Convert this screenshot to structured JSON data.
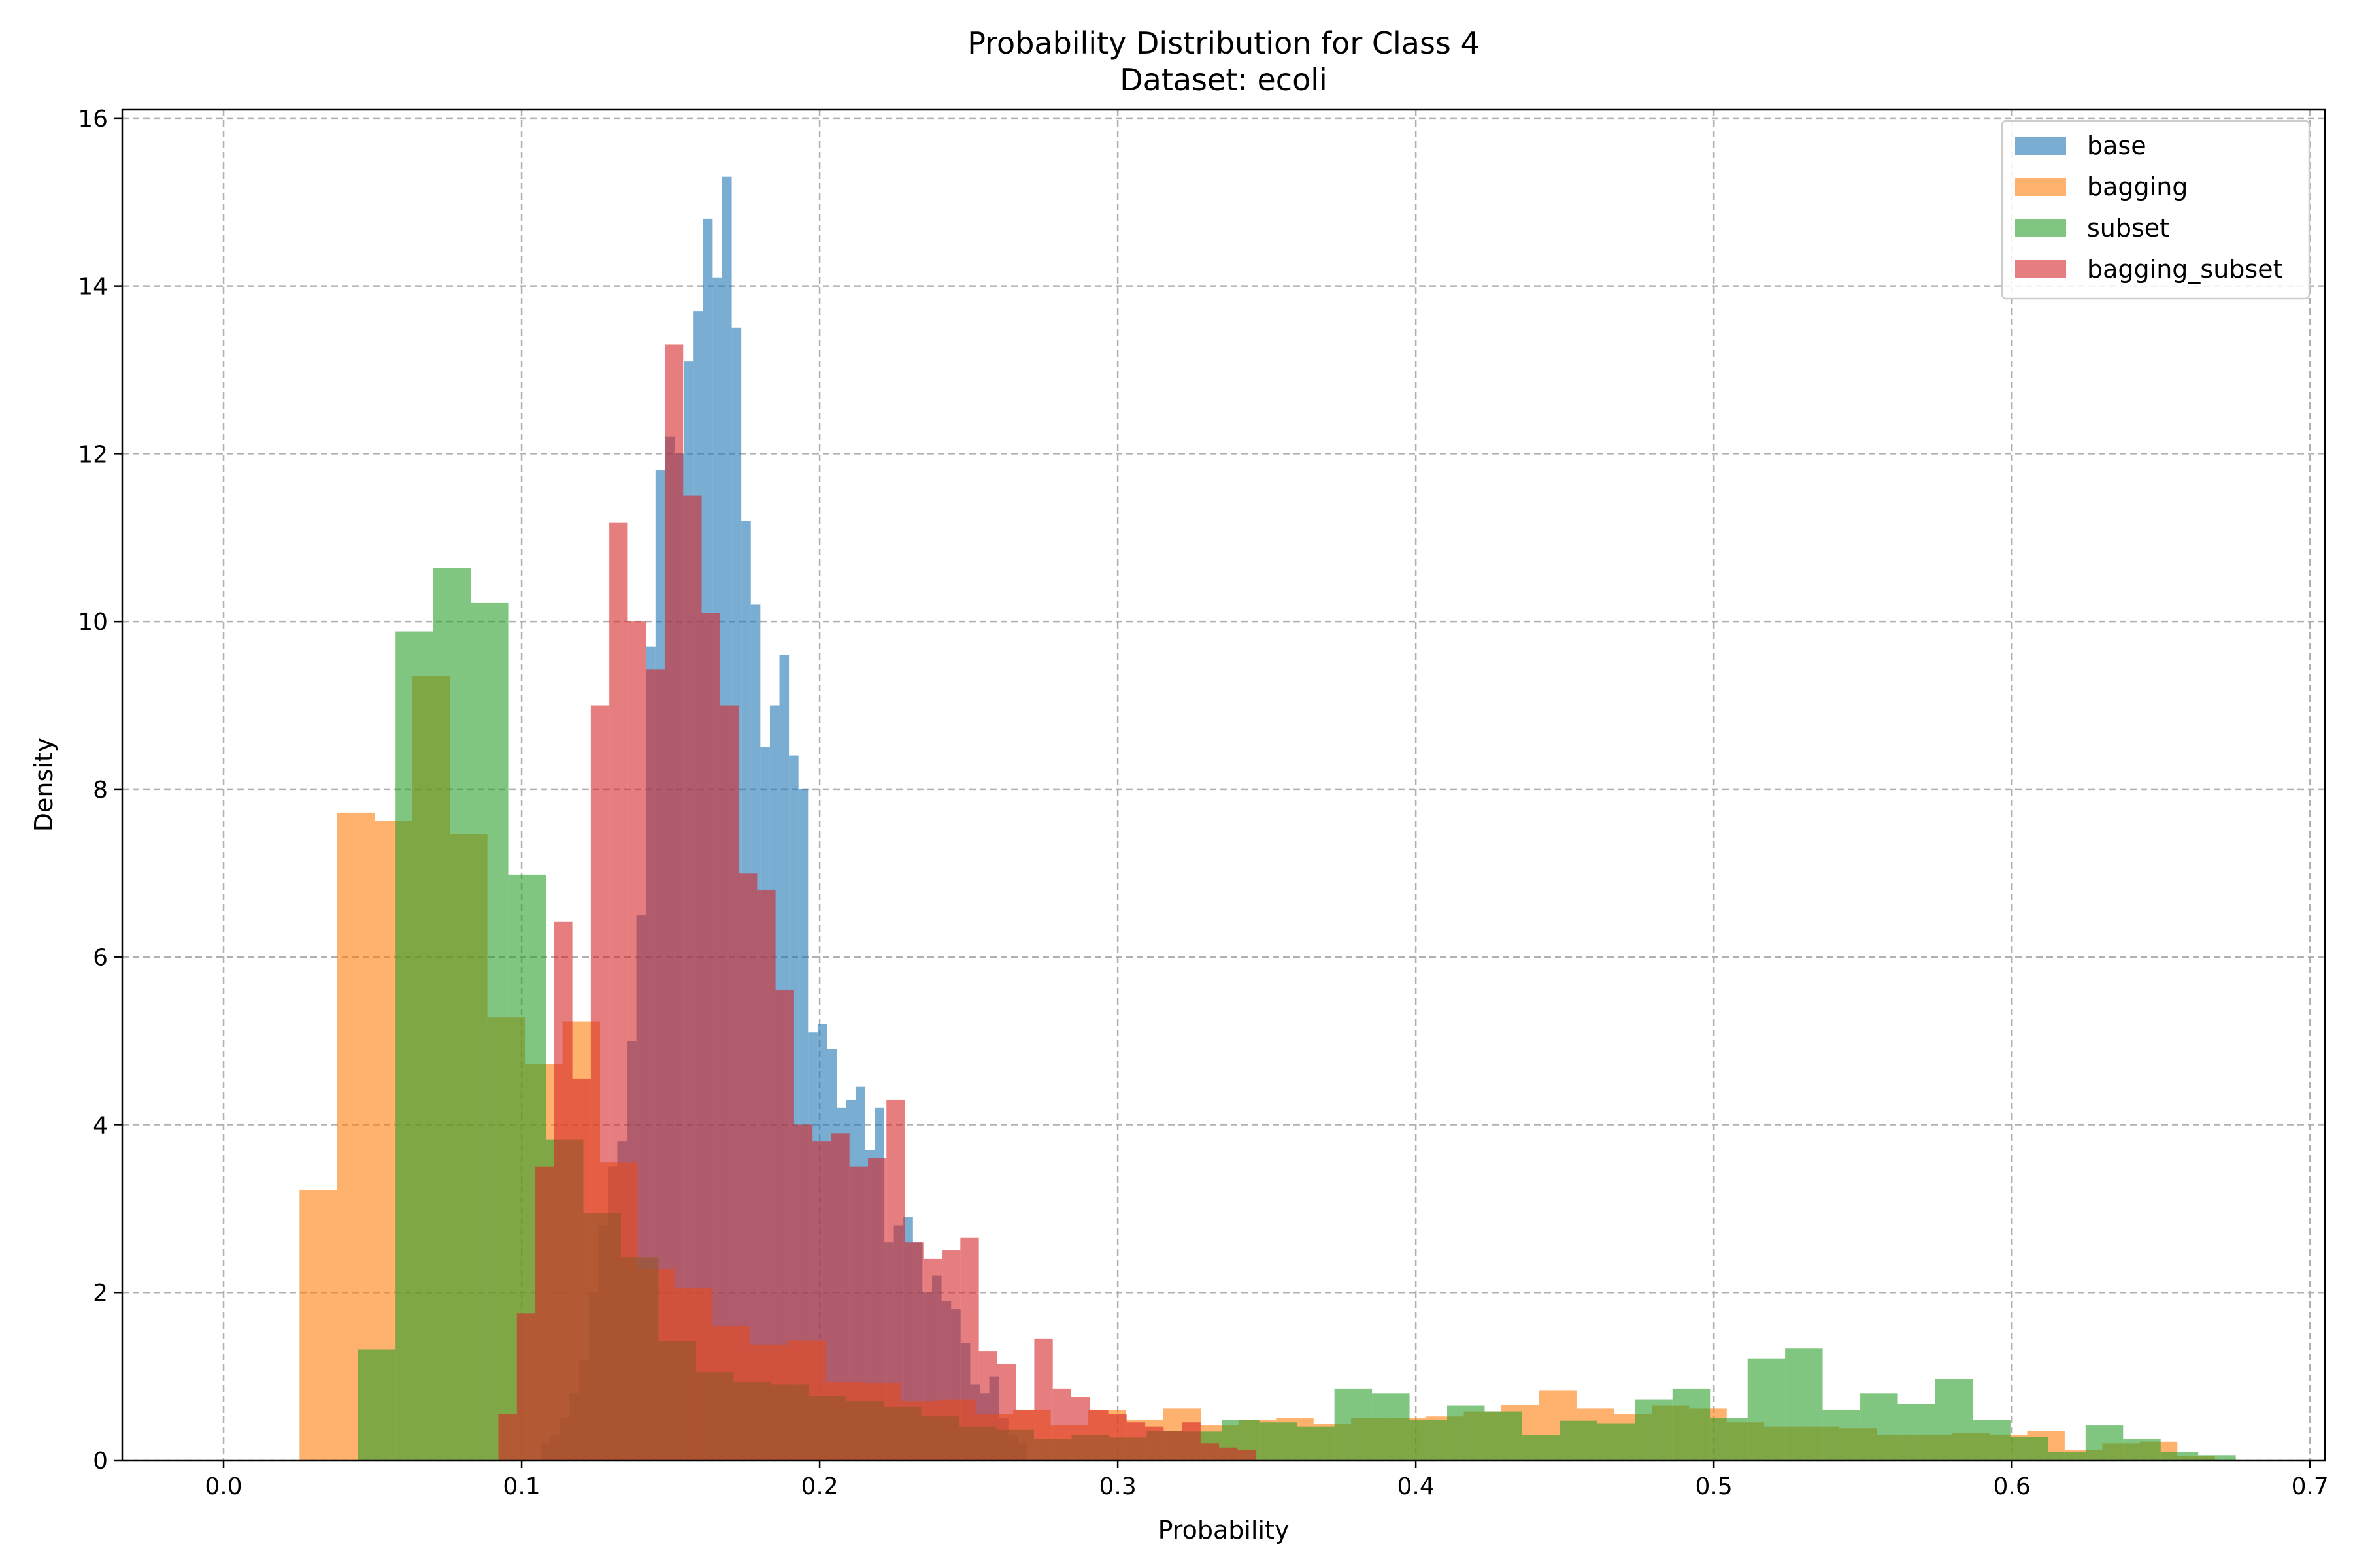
{
  "chart_data": {
    "type": "histogram",
    "title": "Probability Distribution for Class 4",
    "subtitle": "Dataset: ecoli",
    "xlabel": "Probability",
    "ylabel": "Density",
    "xlim": [
      -0.034,
      0.705
    ],
    "ylim": [
      0,
      16.1
    ],
    "xticks": [
      0.0,
      0.1,
      0.2,
      0.3,
      0.4,
      0.5,
      0.6,
      0.7
    ],
    "xtick_labels": [
      "0.0",
      "0.1",
      "0.2",
      "0.3",
      "0.4",
      "0.5",
      "0.6",
      "0.7"
    ],
    "yticks": [
      0,
      2,
      4,
      6,
      8,
      10,
      12,
      14,
      16
    ],
    "ytick_labels": [
      "0",
      "2",
      "4",
      "6",
      "8",
      "10",
      "12",
      "14",
      "16"
    ],
    "grid": true,
    "legend_position": "top-right",
    "bar_opacity": 0.6,
    "series": [
      {
        "name": "base",
        "color": "#1f77b4",
        "bins": [
          [
            0.1065,
            0.1097,
            0.2
          ],
          [
            0.1097,
            0.1129,
            0.3
          ],
          [
            0.1129,
            0.1161,
            0.5
          ],
          [
            0.1161,
            0.1193,
            0.8
          ],
          [
            0.1193,
            0.1225,
            1.2
          ],
          [
            0.1225,
            0.1257,
            2.0
          ],
          [
            0.1257,
            0.1289,
            2.8
          ],
          [
            0.1289,
            0.1321,
            3.5
          ],
          [
            0.1321,
            0.1353,
            3.8
          ],
          [
            0.1353,
            0.1385,
            5.0
          ],
          [
            0.1385,
            0.1417,
            6.5
          ],
          [
            0.1417,
            0.1449,
            9.7
          ],
          [
            0.1449,
            0.1481,
            11.8
          ],
          [
            0.1481,
            0.1513,
            12.2
          ],
          [
            0.1513,
            0.1545,
            12.0
          ],
          [
            0.1545,
            0.1577,
            13.1
          ],
          [
            0.1577,
            0.1609,
            13.7
          ],
          [
            0.1609,
            0.1641,
            14.8
          ],
          [
            0.1641,
            0.1673,
            14.1
          ],
          [
            0.1673,
            0.1705,
            15.3
          ],
          [
            0.1705,
            0.1737,
            13.5
          ],
          [
            0.1737,
            0.1769,
            11.2
          ],
          [
            0.1769,
            0.1801,
            10.2
          ],
          [
            0.1801,
            0.1833,
            8.5
          ],
          [
            0.1833,
            0.1865,
            9.0
          ],
          [
            0.1865,
            0.1897,
            9.6
          ],
          [
            0.1897,
            0.1929,
            8.4
          ],
          [
            0.1929,
            0.1961,
            8.0
          ],
          [
            0.1961,
            0.1993,
            5.1
          ],
          [
            0.1993,
            0.2025,
            5.2
          ],
          [
            0.2025,
            0.2057,
            4.9
          ],
          [
            0.2057,
            0.2089,
            4.2
          ],
          [
            0.2089,
            0.2121,
            4.3
          ],
          [
            0.2121,
            0.2153,
            4.45
          ],
          [
            0.2153,
            0.2185,
            3.7
          ],
          [
            0.2185,
            0.2217,
            4.2
          ],
          [
            0.2217,
            0.2249,
            2.6
          ],
          [
            0.2249,
            0.2281,
            2.8
          ],
          [
            0.2281,
            0.2313,
            2.9
          ],
          [
            0.2313,
            0.2345,
            2.6
          ],
          [
            0.2345,
            0.2377,
            2.0
          ],
          [
            0.2377,
            0.2409,
            2.2
          ],
          [
            0.2409,
            0.2441,
            1.9
          ],
          [
            0.2441,
            0.2473,
            1.8
          ],
          [
            0.2473,
            0.2505,
            1.4
          ],
          [
            0.2505,
            0.2537,
            0.9
          ],
          [
            0.2537,
            0.2569,
            0.8
          ],
          [
            0.2569,
            0.2601,
            1.0
          ],
          [
            0.2601,
            0.2633,
            0.5
          ],
          [
            0.2633,
            0.2665,
            0.3
          ],
          [
            0.2665,
            0.2697,
            0.2
          ]
        ]
      },
      {
        "name": "bagging",
        "color": "#ff7f0e",
        "bins": [
          [
            0.0255,
            0.0381,
            3.22
          ],
          [
            0.0381,
            0.0507,
            7.72
          ],
          [
            0.0507,
            0.0633,
            7.62
          ],
          [
            0.0633,
            0.0759,
            9.35
          ],
          [
            0.0759,
            0.0885,
            7.47
          ],
          [
            0.0885,
            0.1011,
            5.28
          ],
          [
            0.1011,
            0.1137,
            4.72
          ],
          [
            0.1137,
            0.1263,
            5.23
          ],
          [
            0.1263,
            0.1389,
            3.55
          ],
          [
            0.1389,
            0.1515,
            2.28
          ],
          [
            0.1515,
            0.1641,
            2.05
          ],
          [
            0.1641,
            0.1767,
            1.6
          ],
          [
            0.1767,
            0.1893,
            1.38
          ],
          [
            0.1893,
            0.2019,
            1.43
          ],
          [
            0.2019,
            0.2145,
            0.93
          ],
          [
            0.2145,
            0.2271,
            0.92
          ],
          [
            0.2271,
            0.2397,
            0.7
          ],
          [
            0.2397,
            0.2523,
            0.72
          ],
          [
            0.2523,
            0.2649,
            0.55
          ],
          [
            0.2649,
            0.2775,
            0.6
          ],
          [
            0.2775,
            0.2901,
            0.42
          ],
          [
            0.2901,
            0.3027,
            0.6
          ],
          [
            0.3027,
            0.3153,
            0.48
          ],
          [
            0.3153,
            0.3279,
            0.62
          ],
          [
            0.3279,
            0.3405,
            0.42
          ],
          [
            0.3405,
            0.3531,
            0.48
          ],
          [
            0.3531,
            0.3657,
            0.5
          ],
          [
            0.3657,
            0.3783,
            0.43
          ],
          [
            0.3783,
            0.3909,
            0.5
          ],
          [
            0.3909,
            0.4035,
            0.5
          ],
          [
            0.4035,
            0.4161,
            0.52
          ],
          [
            0.4161,
            0.4287,
            0.58
          ],
          [
            0.4287,
            0.4413,
            0.66
          ],
          [
            0.4413,
            0.4539,
            0.83
          ],
          [
            0.4539,
            0.4665,
            0.62
          ],
          [
            0.4665,
            0.4791,
            0.55
          ],
          [
            0.4791,
            0.4917,
            0.65
          ],
          [
            0.4917,
            0.5043,
            0.62
          ],
          [
            0.5043,
            0.5169,
            0.45
          ],
          [
            0.5169,
            0.5295,
            0.4
          ],
          [
            0.5295,
            0.5421,
            0.4
          ],
          [
            0.5421,
            0.5547,
            0.38
          ],
          [
            0.5547,
            0.5673,
            0.3
          ],
          [
            0.5673,
            0.5799,
            0.3
          ],
          [
            0.5799,
            0.5925,
            0.32
          ],
          [
            0.5925,
            0.6051,
            0.3
          ],
          [
            0.6051,
            0.6177,
            0.35
          ],
          [
            0.6177,
            0.6303,
            0.12
          ],
          [
            0.6303,
            0.6429,
            0.2
          ],
          [
            0.6429,
            0.6555,
            0.22
          ],
          [
            0.6555,
            0.6681,
            0.05
          ]
        ]
      },
      {
        "name": "subset",
        "color": "#2ca02c",
        "bins": [
          [
            0.0451,
            0.0577,
            1.32
          ],
          [
            0.0577,
            0.0703,
            9.88
          ],
          [
            0.0703,
            0.0829,
            10.64
          ],
          [
            0.0829,
            0.0955,
            10.22
          ],
          [
            0.0955,
            0.1081,
            6.98
          ],
          [
            0.1081,
            0.1207,
            3.82
          ],
          [
            0.1207,
            0.1333,
            2.95
          ],
          [
            0.1333,
            0.1459,
            2.42
          ],
          [
            0.1459,
            0.1585,
            1.42
          ],
          [
            0.1585,
            0.1711,
            1.05
          ],
          [
            0.1711,
            0.1837,
            0.93
          ],
          [
            0.1837,
            0.1963,
            0.9
          ],
          [
            0.1963,
            0.2089,
            0.77
          ],
          [
            0.2089,
            0.2215,
            0.7
          ],
          [
            0.2215,
            0.2341,
            0.64
          ],
          [
            0.2341,
            0.2467,
            0.52
          ],
          [
            0.2467,
            0.2593,
            0.4
          ],
          [
            0.2593,
            0.2719,
            0.36
          ],
          [
            0.2719,
            0.2845,
            0.25
          ],
          [
            0.2845,
            0.2971,
            0.3
          ],
          [
            0.2971,
            0.3097,
            0.27
          ],
          [
            0.3097,
            0.3223,
            0.35
          ],
          [
            0.3223,
            0.3349,
            0.34
          ],
          [
            0.3349,
            0.3475,
            0.48
          ],
          [
            0.3475,
            0.3601,
            0.45
          ],
          [
            0.3601,
            0.3727,
            0.4
          ],
          [
            0.3727,
            0.3853,
            0.85
          ],
          [
            0.3853,
            0.3979,
            0.8
          ],
          [
            0.3979,
            0.4105,
            0.48
          ],
          [
            0.4105,
            0.4231,
            0.65
          ],
          [
            0.4231,
            0.4357,
            0.58
          ],
          [
            0.4357,
            0.4483,
            0.3
          ],
          [
            0.4483,
            0.4609,
            0.47
          ],
          [
            0.4609,
            0.4735,
            0.44
          ],
          [
            0.4735,
            0.4861,
            0.72
          ],
          [
            0.4861,
            0.4987,
            0.85
          ],
          [
            0.4987,
            0.5113,
            0.5
          ],
          [
            0.5113,
            0.5239,
            1.21
          ],
          [
            0.5239,
            0.5365,
            1.33
          ],
          [
            0.5365,
            0.5491,
            0.6
          ],
          [
            0.5491,
            0.5617,
            0.8
          ],
          [
            0.5617,
            0.5743,
            0.67
          ],
          [
            0.5743,
            0.5869,
            0.97
          ],
          [
            0.5869,
            0.5995,
            0.48
          ],
          [
            0.5995,
            0.6121,
            0.28
          ],
          [
            0.6121,
            0.6247,
            0.1
          ],
          [
            0.6247,
            0.6373,
            0.42
          ],
          [
            0.6373,
            0.6499,
            0.25
          ],
          [
            0.6499,
            0.6625,
            0.1
          ],
          [
            0.6625,
            0.6751,
            0.06
          ]
        ]
      },
      {
        "name": "bagging_subset",
        "color": "#d62728",
        "bins": [
          [
            0.0922,
            0.0984,
            0.55
          ],
          [
            0.0984,
            0.1046,
            1.75
          ],
          [
            0.1046,
            0.1108,
            3.5
          ],
          [
            0.1108,
            0.117,
            6.42
          ],
          [
            0.117,
            0.1232,
            4.55
          ],
          [
            0.1232,
            0.1294,
            9.0
          ],
          [
            0.1294,
            0.1356,
            11.18
          ],
          [
            0.1356,
            0.1418,
            10.0
          ],
          [
            0.1418,
            0.148,
            9.43
          ],
          [
            0.148,
            0.1542,
            13.3
          ],
          [
            0.1542,
            0.1604,
            11.5
          ],
          [
            0.1604,
            0.1666,
            10.1
          ],
          [
            0.1666,
            0.1728,
            9.0
          ],
          [
            0.1728,
            0.179,
            7.0
          ],
          [
            0.179,
            0.1852,
            6.8
          ],
          [
            0.1852,
            0.1914,
            5.6
          ],
          [
            0.1914,
            0.1976,
            4.0
          ],
          [
            0.1976,
            0.2038,
            3.8
          ],
          [
            0.2038,
            0.21,
            3.9
          ],
          [
            0.21,
            0.2162,
            3.5
          ],
          [
            0.2162,
            0.2224,
            3.6
          ],
          [
            0.2224,
            0.2286,
            4.3
          ],
          [
            0.2286,
            0.2348,
            2.6
          ],
          [
            0.2348,
            0.241,
            2.4
          ],
          [
            0.241,
            0.2472,
            2.5
          ],
          [
            0.2472,
            0.2534,
            2.65
          ],
          [
            0.2534,
            0.2596,
            1.3
          ],
          [
            0.2596,
            0.2658,
            1.15
          ],
          [
            0.2658,
            0.272,
            0.6
          ],
          [
            0.272,
            0.2782,
            1.45
          ],
          [
            0.2782,
            0.2844,
            0.85
          ],
          [
            0.2844,
            0.2906,
            0.75
          ],
          [
            0.2906,
            0.2968,
            0.6
          ],
          [
            0.2968,
            0.303,
            0.55
          ],
          [
            0.303,
            0.3092,
            0.45
          ],
          [
            0.3092,
            0.3154,
            0.4
          ],
          [
            0.3154,
            0.3216,
            0.35
          ],
          [
            0.3216,
            0.3278,
            0.45
          ],
          [
            0.3278,
            0.334,
            0.2
          ],
          [
            0.334,
            0.3402,
            0.15
          ],
          [
            0.3402,
            0.3464,
            0.12
          ]
        ]
      }
    ]
  }
}
